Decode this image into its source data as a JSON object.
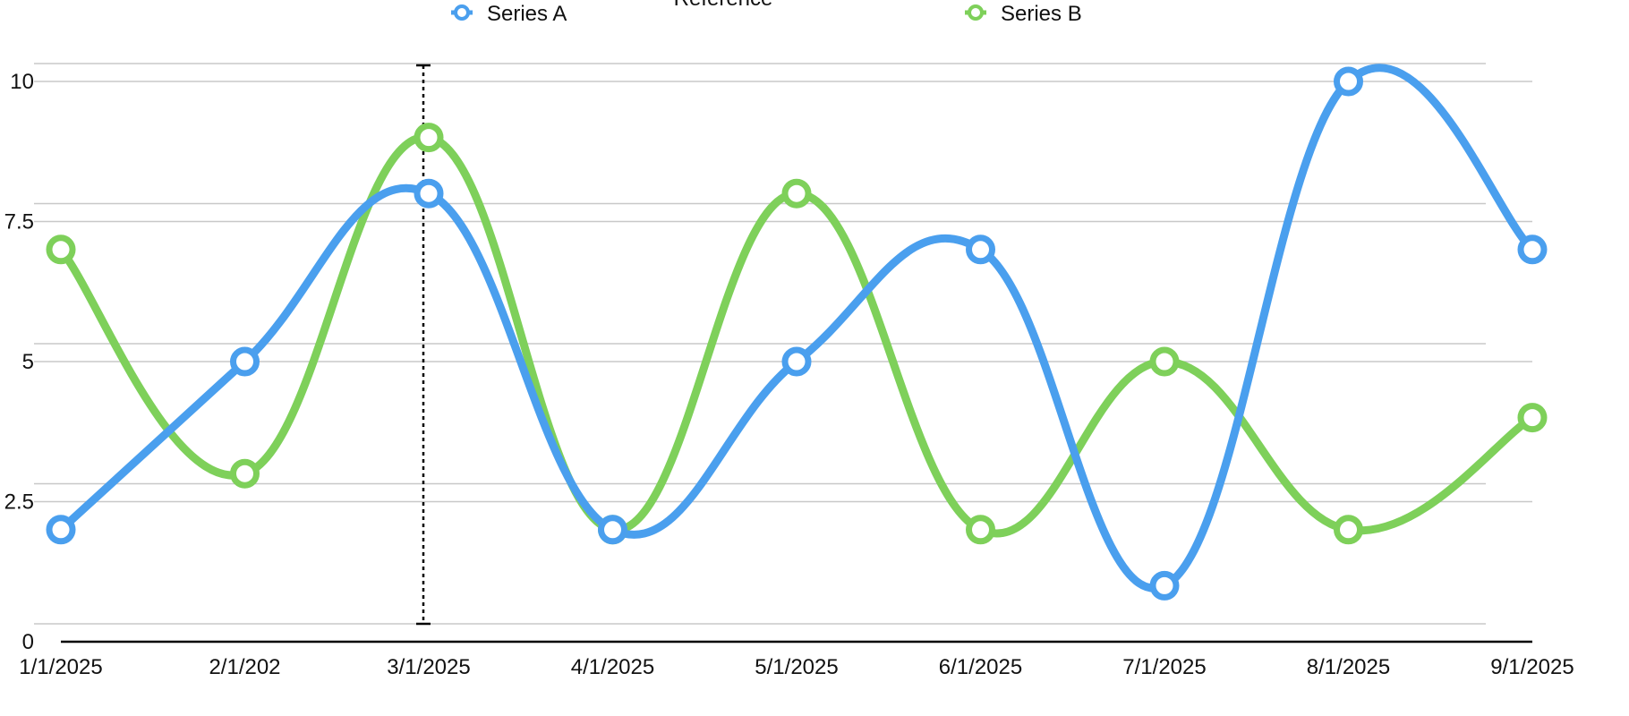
{
  "chart_data": {
    "type": "line",
    "title": "",
    "xlabel": "",
    "ylabel": "",
    "x": [
      "1/1/2025",
      "2/1/202",
      "3/1/2025",
      "4/1/2025",
      "5/1/2025",
      "6/1/2025",
      "7/1/2025",
      "8/1/2025",
      "9/1/2025"
    ],
    "y_ticks": [
      "0",
      "2.5",
      "5",
      "7.5",
      "10"
    ],
    "ylim": [
      0,
      10
    ],
    "grid": true,
    "legend_position": "top",
    "series": [
      {
        "name": "Series A",
        "color": "#4a9fee",
        "values": [
          2,
          5,
          8,
          2,
          5,
          7,
          1,
          10,
          7
        ]
      },
      {
        "name": "Series B",
        "color": "#7ed05a",
        "values": [
          7,
          3,
          9,
          2,
          8,
          2,
          5,
          2,
          4
        ]
      }
    ],
    "reference_line": {
      "label": "Reference",
      "x_index": 2
    }
  }
}
